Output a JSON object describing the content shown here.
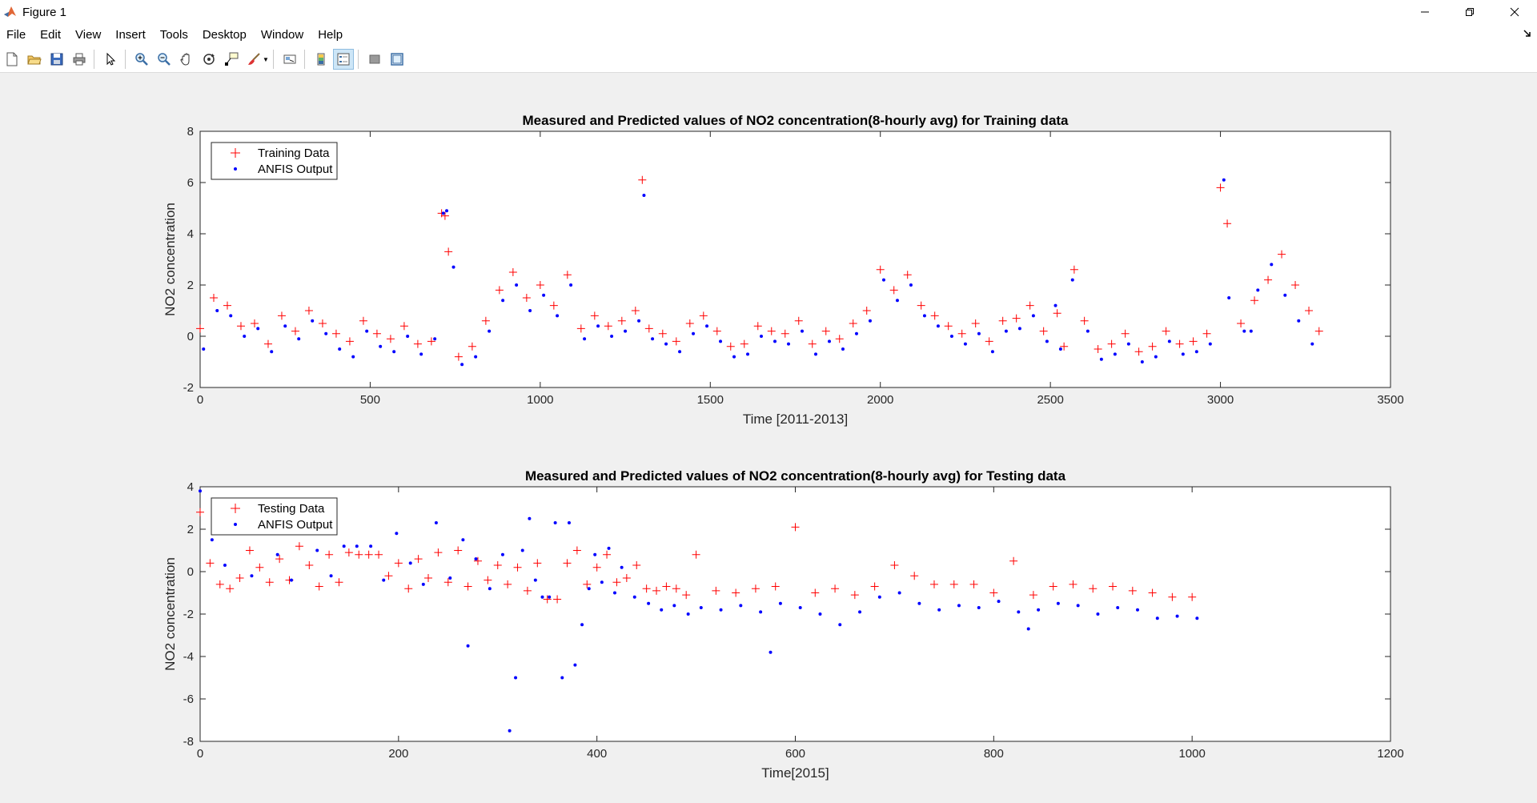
{
  "window": {
    "title": "Figure 1"
  },
  "menu": [
    "File",
    "Edit",
    "View",
    "Insert",
    "Tools",
    "Desktop",
    "Window",
    "Help"
  ],
  "toolbar": {
    "icons": [
      "new-figure-icon",
      "open-file-icon",
      "save-icon",
      "print-icon",
      "edit-plot-arrow-icon",
      "zoom-in-icon",
      "zoom-out-icon",
      "pan-hand-icon",
      "rotate-3d-icon",
      "data-cursor-icon",
      "brush-icon",
      "link-plot-icon",
      "colorbar-icon",
      "legend-icon",
      "hide-plot-tools-icon",
      "show-plot-tools-icon"
    ]
  },
  "colors": {
    "measured": "#ff0000",
    "predicted": "#0000ff",
    "axes_bg": "#ffffff",
    "figure_bg": "#f0f0f0"
  },
  "chart_data": [
    {
      "type": "scatter",
      "title": "Measured and Predicted values of NO2 concentration(8-hourly avg) for Training data",
      "xlabel": "Time [2011-2013]",
      "ylabel": "NO2 concentration",
      "xlim": [
        0,
        3500
      ],
      "ylim": [
        -2,
        8
      ],
      "xticks": [
        0,
        500,
        1000,
        1500,
        2000,
        2500,
        3000,
        3500
      ],
      "yticks": [
        -2,
        0,
        2,
        4,
        6,
        8
      ],
      "legend_position": "top-left",
      "grid": false,
      "series": [
        {
          "name": "Training Data",
          "marker": "+",
          "color": "#ff0000",
          "x": [
            0,
            40,
            80,
            120,
            160,
            200,
            240,
            280,
            320,
            360,
            400,
            440,
            480,
            520,
            560,
            600,
            640,
            680,
            710,
            720,
            730,
            760,
            800,
            840,
            880,
            920,
            960,
            1000,
            1040,
            1080,
            1120,
            1160,
            1200,
            1240,
            1280,
            1300,
            1320,
            1360,
            1400,
            1440,
            1480,
            1520,
            1560,
            1600,
            1640,
            1680,
            1720,
            1760,
            1800,
            1840,
            1880,
            1920,
            1960,
            2000,
            2040,
            2080,
            2120,
            2160,
            2200,
            2240,
            2280,
            2320,
            2360,
            2400,
            2440,
            2480,
            2520,
            2540,
            2570,
            2600,
            2640,
            2680,
            2720,
            2760,
            2800,
            2840,
            2880,
            2920,
            2960,
            3000,
            3020,
            3060,
            3100,
            3140,
            3180,
            3220,
            3260,
            3290
          ],
          "y": [
            0.3,
            1.5,
            1.2,
            0.4,
            0.5,
            -0.3,
            0.8,
            0.2,
            1.0,
            0.5,
            0.1,
            -0.2,
            0.6,
            0.1,
            -0.1,
            0.4,
            -0.3,
            -0.2,
            4.8,
            4.7,
            3.3,
            -0.8,
            -0.4,
            0.6,
            1.8,
            2.5,
            1.5,
            2.0,
            1.2,
            2.4,
            0.3,
            0.8,
            0.4,
            0.6,
            1.0,
            6.1,
            0.3,
            0.1,
            -0.2,
            0.5,
            0.8,
            0.2,
            -0.4,
            -0.3,
            0.4,
            0.2,
            0.1,
            0.6,
            -0.3,
            0.2,
            -0.1,
            0.5,
            1.0,
            2.6,
            1.8,
            2.4,
            1.2,
            0.8,
            0.4,
            0.1,
            0.5,
            -0.2,
            0.6,
            0.7,
            1.2,
            0.2,
            0.9,
            -0.4,
            2.6,
            0.6,
            -0.5,
            -0.3,
            0.1,
            -0.6,
            -0.4,
            0.2,
            -0.3,
            -0.2,
            0.1,
            5.8,
            4.4,
            0.5,
            1.4,
            2.2,
            3.2,
            2.0,
            1.0,
            0.2
          ]
        },
        {
          "name": "ANFIS Output",
          "marker": ".",
          "color": "#0000ff",
          "x": [
            10,
            50,
            90,
            130,
            170,
            210,
            250,
            290,
            330,
            370,
            410,
            450,
            490,
            530,
            570,
            610,
            650,
            690,
            715,
            725,
            745,
            770,
            810,
            850,
            890,
            930,
            970,
            1010,
            1050,
            1090,
            1130,
            1170,
            1210,
            1250,
            1290,
            1305,
            1330,
            1370,
            1410,
            1450,
            1490,
            1530,
            1570,
            1610,
            1650,
            1690,
            1730,
            1770,
            1810,
            1850,
            1890,
            1930,
            1970,
            2010,
            2050,
            2090,
            2130,
            2170,
            2210,
            2250,
            2290,
            2330,
            2370,
            2410,
            2450,
            2490,
            2515,
            2530,
            2565,
            2610,
            2650,
            2690,
            2730,
            2770,
            2810,
            2850,
            2890,
            2930,
            2970,
            3010,
            3025,
            3070,
            3090,
            3110,
            3150,
            3190,
            3230,
            3270
          ],
          "y": [
            -0.5,
            1.0,
            0.8,
            0.0,
            0.3,
            -0.6,
            0.4,
            -0.1,
            0.6,
            0.1,
            -0.5,
            -0.8,
            0.2,
            -0.4,
            -0.6,
            0.0,
            -0.7,
            -0.1,
            4.8,
            4.9,
            2.7,
            -1.1,
            -0.8,
            0.2,
            1.4,
            2.0,
            1.0,
            1.6,
            0.8,
            2.0,
            -0.1,
            0.4,
            0.0,
            0.2,
            0.6,
            5.5,
            -0.1,
            -0.3,
            -0.6,
            0.1,
            0.4,
            -0.2,
            -0.8,
            -0.7,
            0.0,
            -0.2,
            -0.3,
            0.2,
            -0.7,
            -0.2,
            -0.5,
            0.1,
            0.6,
            2.2,
            1.4,
            2.0,
            0.8,
            0.4,
            0.0,
            -0.3,
            0.1,
            -0.6,
            0.2,
            0.3,
            0.8,
            -0.2,
            1.2,
            -0.5,
            2.2,
            0.2,
            -0.9,
            -0.7,
            -0.3,
            -1.0,
            -0.8,
            -0.2,
            -0.7,
            -0.6,
            -0.3,
            6.1,
            1.5,
            0.2,
            0.2,
            1.8,
            2.8,
            1.6,
            0.6,
            -0.3
          ]
        }
      ]
    },
    {
      "type": "scatter",
      "title": "Measured and Predicted values of NO2 concentration(8-hourly avg) for Testing data",
      "xlabel": "Time[2015]",
      "ylabel": "NO2 concentration",
      "xlim": [
        0,
        1200
      ],
      "ylim": [
        -8,
        4
      ],
      "xticks": [
        0,
        200,
        400,
        600,
        800,
        1000,
        1200
      ],
      "yticks": [
        -8,
        -6,
        -4,
        -2,
        0,
        2,
        4
      ],
      "legend_position": "top-left",
      "grid": false,
      "series": [
        {
          "name": "Testing Data",
          "marker": "+",
          "color": "#ff0000",
          "x": [
            0,
            10,
            20,
            30,
            40,
            50,
            60,
            70,
            80,
            90,
            100,
            110,
            120,
            130,
            140,
            150,
            160,
            170,
            180,
            190,
            200,
            210,
            220,
            230,
            240,
            250,
            260,
            270,
            280,
            290,
            300,
            310,
            320,
            330,
            340,
            350,
            360,
            370,
            380,
            390,
            400,
            410,
            420,
            430,
            440,
            450,
            460,
            470,
            480,
            490,
            500,
            520,
            540,
            560,
            580,
            600,
            620,
            640,
            660,
            680,
            700,
            720,
            740,
            760,
            780,
            800,
            820,
            840,
            860,
            880,
            900,
            920,
            940,
            960,
            980,
            1000
          ],
          "y": [
            2.8,
            0.4,
            -0.6,
            -0.8,
            -0.3,
            1.0,
            0.2,
            -0.5,
            0.6,
            -0.4,
            1.2,
            0.3,
            -0.7,
            0.8,
            -0.5,
            0.9,
            0.8,
            0.8,
            0.8,
            -0.2,
            0.4,
            -0.8,
            0.6,
            -0.3,
            0.9,
            -0.5,
            1.0,
            -0.7,
            0.5,
            -0.4,
            0.3,
            -0.6,
            0.2,
            -0.9,
            0.4,
            -1.3,
            -1.3,
            0.4,
            1.0,
            -0.6,
            0.2,
            0.8,
            -0.5,
            -0.3,
            0.3,
            -0.8,
            -0.9,
            -0.7,
            -0.8,
            -1.1,
            0.8,
            -0.9,
            -1.0,
            -0.8,
            -0.7,
            2.1,
            -1.0,
            -0.8,
            -1.1,
            -0.7,
            0.3,
            -0.2,
            -0.6,
            -0.6,
            -0.6,
            -1.0,
            0.5,
            -1.1,
            -0.7,
            -0.6,
            -0.8,
            -0.7,
            -0.9,
            -1.0,
            -1.2,
            -1.2
          ]
        },
        {
          "name": "ANFIS Output",
          "marker": ".",
          "color": "#0000ff",
          "x": [
            0,
            12,
            25,
            38,
            52,
            65,
            78,
            92,
            105,
            118,
            132,
            145,
            158,
            172,
            185,
            198,
            212,
            225,
            238,
            252,
            265,
            270,
            278,
            292,
            305,
            312,
            318,
            325,
            332,
            338,
            345,
            352,
            358,
            365,
            372,
            378,
            385,
            392,
            398,
            405,
            412,
            418,
            425,
            438,
            452,
            465,
            478,
            492,
            505,
            525,
            545,
            565,
            575,
            585,
            605,
            625,
            645,
            665,
            685,
            705,
            725,
            745,
            765,
            785,
            805,
            825,
            835,
            845,
            865,
            885,
            905,
            925,
            945,
            965,
            985,
            1005
          ],
          "y": [
            3.8,
            1.5,
            0.3,
            1.8,
            -0.2,
            2.0,
            0.8,
            -0.4,
            2.2,
            1.0,
            -0.2,
            1.2,
            1.2,
            1.2,
            -0.4,
            1.8,
            0.4,
            -0.6,
            2.3,
            -0.3,
            1.5,
            -3.5,
            0.6,
            -0.8,
            0.8,
            -7.5,
            -5.0,
            1.0,
            2.5,
            -0.4,
            -1.2,
            -1.2,
            2.3,
            -5.0,
            2.3,
            -4.4,
            -2.5,
            -0.8,
            0.8,
            -0.5,
            1.1,
            -1.0,
            0.2,
            -1.2,
            -1.5,
            -1.8,
            -1.6,
            -2.0,
            -1.7,
            -1.8,
            -1.6,
            -1.9,
            -3.8,
            -1.5,
            -1.7,
            -2.0,
            -2.5,
            -1.9,
            -1.2,
            -1.0,
            -1.5,
            -1.8,
            -1.6,
            -1.7,
            -1.4,
            -1.9,
            -2.7,
            -1.8,
            -1.5,
            -1.6,
            -2.0,
            -1.7,
            -1.8,
            -2.2,
            -2.1,
            -2.2
          ]
        }
      ]
    }
  ]
}
